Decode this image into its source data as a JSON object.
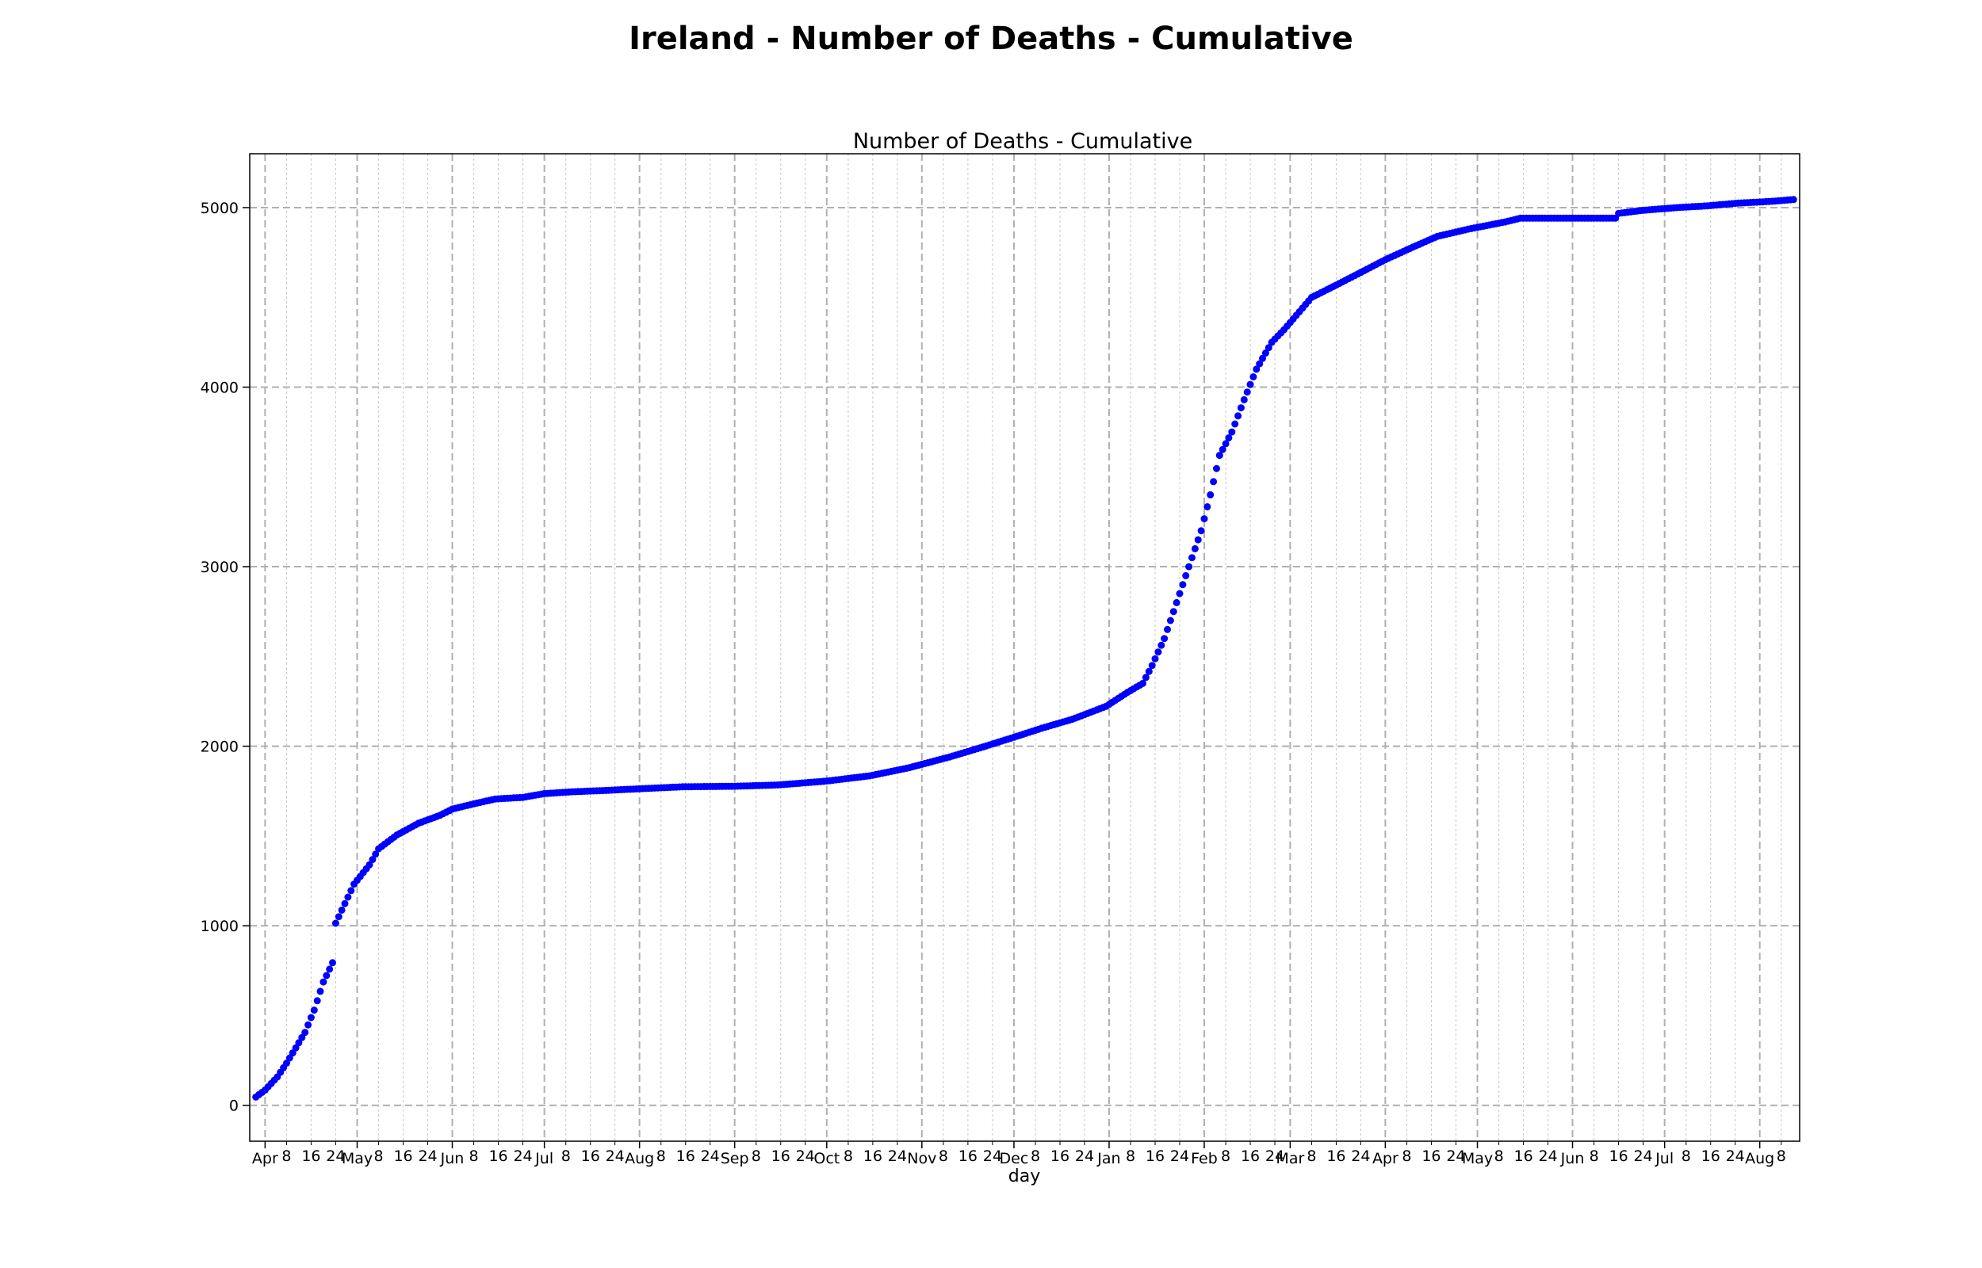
{
  "figure": {
    "suptitle": "Ireland - Number of Deaths - Cumulative"
  },
  "chart_data": {
    "type": "scatter",
    "title": "Number of Deaths - Cumulative",
    "xlabel": "day",
    "ylabel": "",
    "x_start_date": "2020-03-29",
    "x_end_date": "2021-08-12",
    "ylim": [
      -200,
      5300
    ],
    "yticks": [
      0,
      1000,
      2000,
      3000,
      4000,
      5000
    ],
    "grid": true,
    "marker_color": "#0000ff",
    "xticks_major": [
      {
        "date": "2020-04-01",
        "label": "Apr"
      },
      {
        "date": "2020-05-01",
        "label": "May"
      },
      {
        "date": "2020-06-01",
        "label": "Jun"
      },
      {
        "date": "2020-07-01",
        "label": "Jul"
      },
      {
        "date": "2020-08-01",
        "label": "Aug"
      },
      {
        "date": "2020-09-01",
        "label": "Sep"
      },
      {
        "date": "2020-10-01",
        "label": "Oct"
      },
      {
        "date": "2020-11-01",
        "label": "Nov"
      },
      {
        "date": "2020-12-01",
        "label": "Dec"
      },
      {
        "date": "2021-01-01",
        "label": "Jan"
      },
      {
        "date": "2021-02-01",
        "label": "Feb"
      },
      {
        "date": "2021-03-01",
        "label": "Mar"
      },
      {
        "date": "2021-04-01",
        "label": "Apr"
      },
      {
        "date": "2021-05-01",
        "label": "May"
      },
      {
        "date": "2021-06-01",
        "label": "Jun"
      },
      {
        "date": "2021-07-01",
        "label": "Jul"
      },
      {
        "date": "2021-08-01",
        "label": "Aug"
      }
    ],
    "minor_tick_days": [
      8,
      16,
      24
    ],
    "series": [
      {
        "values": [
          [
            "2020-03-29",
            46
          ],
          [
            "2020-04-01",
            85
          ],
          [
            "2020-04-05",
            158
          ],
          [
            "2020-04-08",
            235
          ],
          [
            "2020-04-11",
            320
          ],
          [
            "2020-04-14",
            406
          ],
          [
            "2020-04-17",
            530
          ],
          [
            "2020-04-20",
            687
          ],
          [
            "2020-04-23",
            794
          ],
          [
            "2020-04-24",
            1014
          ],
          [
            "2020-04-26",
            1087
          ],
          [
            "2020-04-30",
            1232
          ],
          [
            "2020-05-05",
            1339
          ],
          [
            "2020-05-08",
            1429
          ],
          [
            "2020-05-14",
            1506
          ],
          [
            "2020-05-21",
            1571
          ],
          [
            "2020-05-28",
            1615
          ],
          [
            "2020-06-01",
            1650
          ],
          [
            "2020-06-08",
            1679
          ],
          [
            "2020-06-15",
            1706
          ],
          [
            "2020-06-24",
            1715
          ],
          [
            "2020-07-01",
            1736
          ],
          [
            "2020-07-10",
            1746
          ],
          [
            "2020-07-20",
            1753
          ],
          [
            "2020-08-01",
            1763
          ],
          [
            "2020-08-15",
            1774
          ],
          [
            "2020-09-01",
            1777
          ],
          [
            "2020-09-15",
            1784
          ],
          [
            "2020-10-01",
            1806
          ],
          [
            "2020-10-15",
            1835
          ],
          [
            "2020-10-28",
            1881
          ],
          [
            "2020-11-10",
            1940
          ],
          [
            "2020-11-20",
            1991
          ],
          [
            "2020-12-01",
            2050
          ],
          [
            "2020-12-10",
            2100
          ],
          [
            "2020-12-20",
            2150
          ],
          [
            "2020-12-31",
            2222
          ],
          [
            "2021-01-07",
            2300
          ],
          [
            "2021-01-12",
            2350
          ],
          [
            "2021-01-15",
            2450
          ],
          [
            "2021-01-19",
            2600
          ],
          [
            "2021-01-22",
            2750
          ],
          [
            "2021-01-26",
            2950
          ],
          [
            "2021-01-31",
            3200
          ],
          [
            "2021-02-03",
            3400
          ],
          [
            "2021-02-06",
            3620
          ],
          [
            "2021-02-10",
            3750
          ],
          [
            "2021-02-14",
            3930
          ],
          [
            "2021-02-18",
            4100
          ],
          [
            "2021-02-23",
            4250
          ],
          [
            "2021-02-27",
            4320
          ],
          [
            "2021-03-03",
            4400
          ],
          [
            "2021-03-08",
            4500
          ],
          [
            "2021-03-15",
            4560
          ],
          [
            "2021-03-23",
            4630
          ],
          [
            "2021-04-01",
            4710
          ],
          [
            "2021-04-10",
            4780
          ],
          [
            "2021-04-18",
            4840
          ],
          [
            "2021-04-28",
            4880
          ],
          [
            "2021-05-10",
            4920
          ],
          [
            "2021-05-15",
            4941
          ],
          [
            "2021-06-15",
            4941
          ],
          [
            "2021-06-16",
            4968
          ],
          [
            "2021-06-24",
            4985
          ],
          [
            "2021-07-05",
            5000
          ],
          [
            "2021-07-15",
            5010
          ],
          [
            "2021-07-25",
            5025
          ],
          [
            "2021-08-05",
            5035
          ],
          [
            "2021-08-12",
            5045
          ]
        ]
      }
    ]
  }
}
